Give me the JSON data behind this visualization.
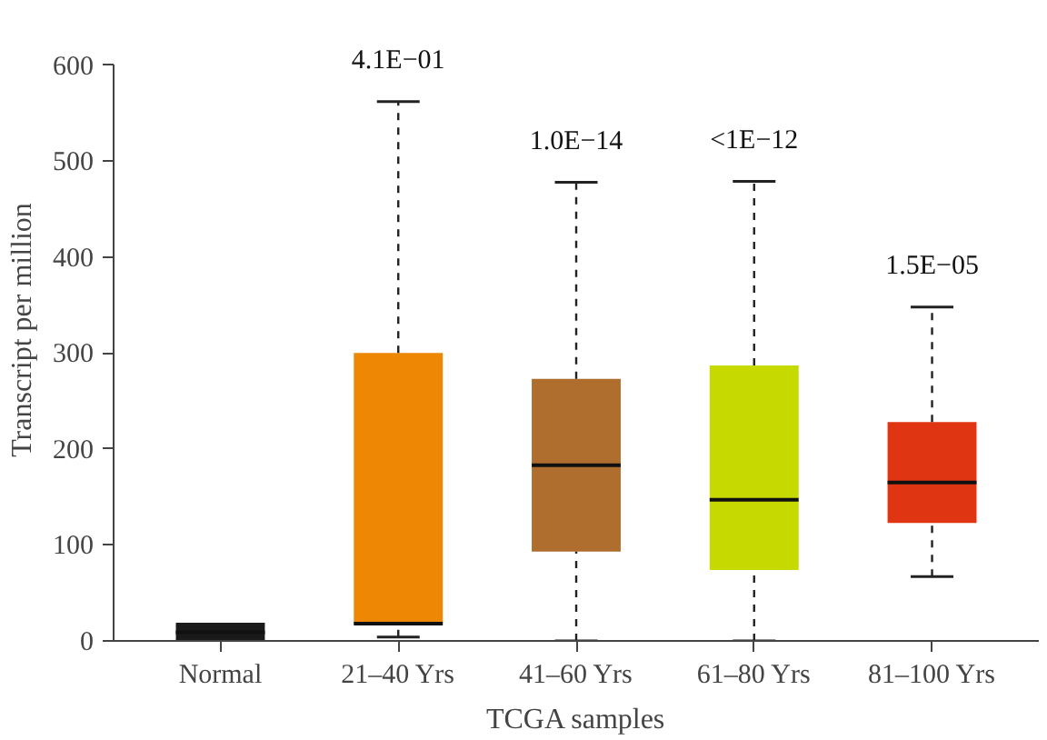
{
  "chart_data": {
    "type": "box",
    "xlabel": "TCGA samples",
    "ylabel": "Transcript per million",
    "categories": [
      "Normal",
      "21–40 Yrs",
      "41–60 Yrs",
      "61–80 Yrs",
      "81–100 Yrs"
    ],
    "colors": [
      "#1a1a1a",
      "#ee8804",
      "#b06e2e",
      "#c6d900",
      "#e03513"
    ],
    "boxes": [
      {
        "low": 0,
        "q1": 0,
        "median": 9,
        "q3": 19,
        "high": 19
      },
      {
        "low": 4,
        "q1": 18,
        "median": 18,
        "q3": 300,
        "high": 562
      },
      {
        "low": 0,
        "q1": 93,
        "median": 183,
        "q3": 273,
        "high": 478
      },
      {
        "low": 0,
        "q1": 74,
        "median": 147,
        "q3": 287,
        "high": 479
      },
      {
        "low": 67,
        "q1": 123,
        "median": 165,
        "q3": 228,
        "high": 348
      }
    ],
    "ylim": [
      0,
      600
    ],
    "yticks": [
      0,
      100,
      200,
      300,
      400,
      500,
      600
    ],
    "line_style": "dashed",
    "annotations": [
      "4.1E−01",
      "1.0E−14",
      "<1E−12",
      "1.5E−05"
    ]
  }
}
